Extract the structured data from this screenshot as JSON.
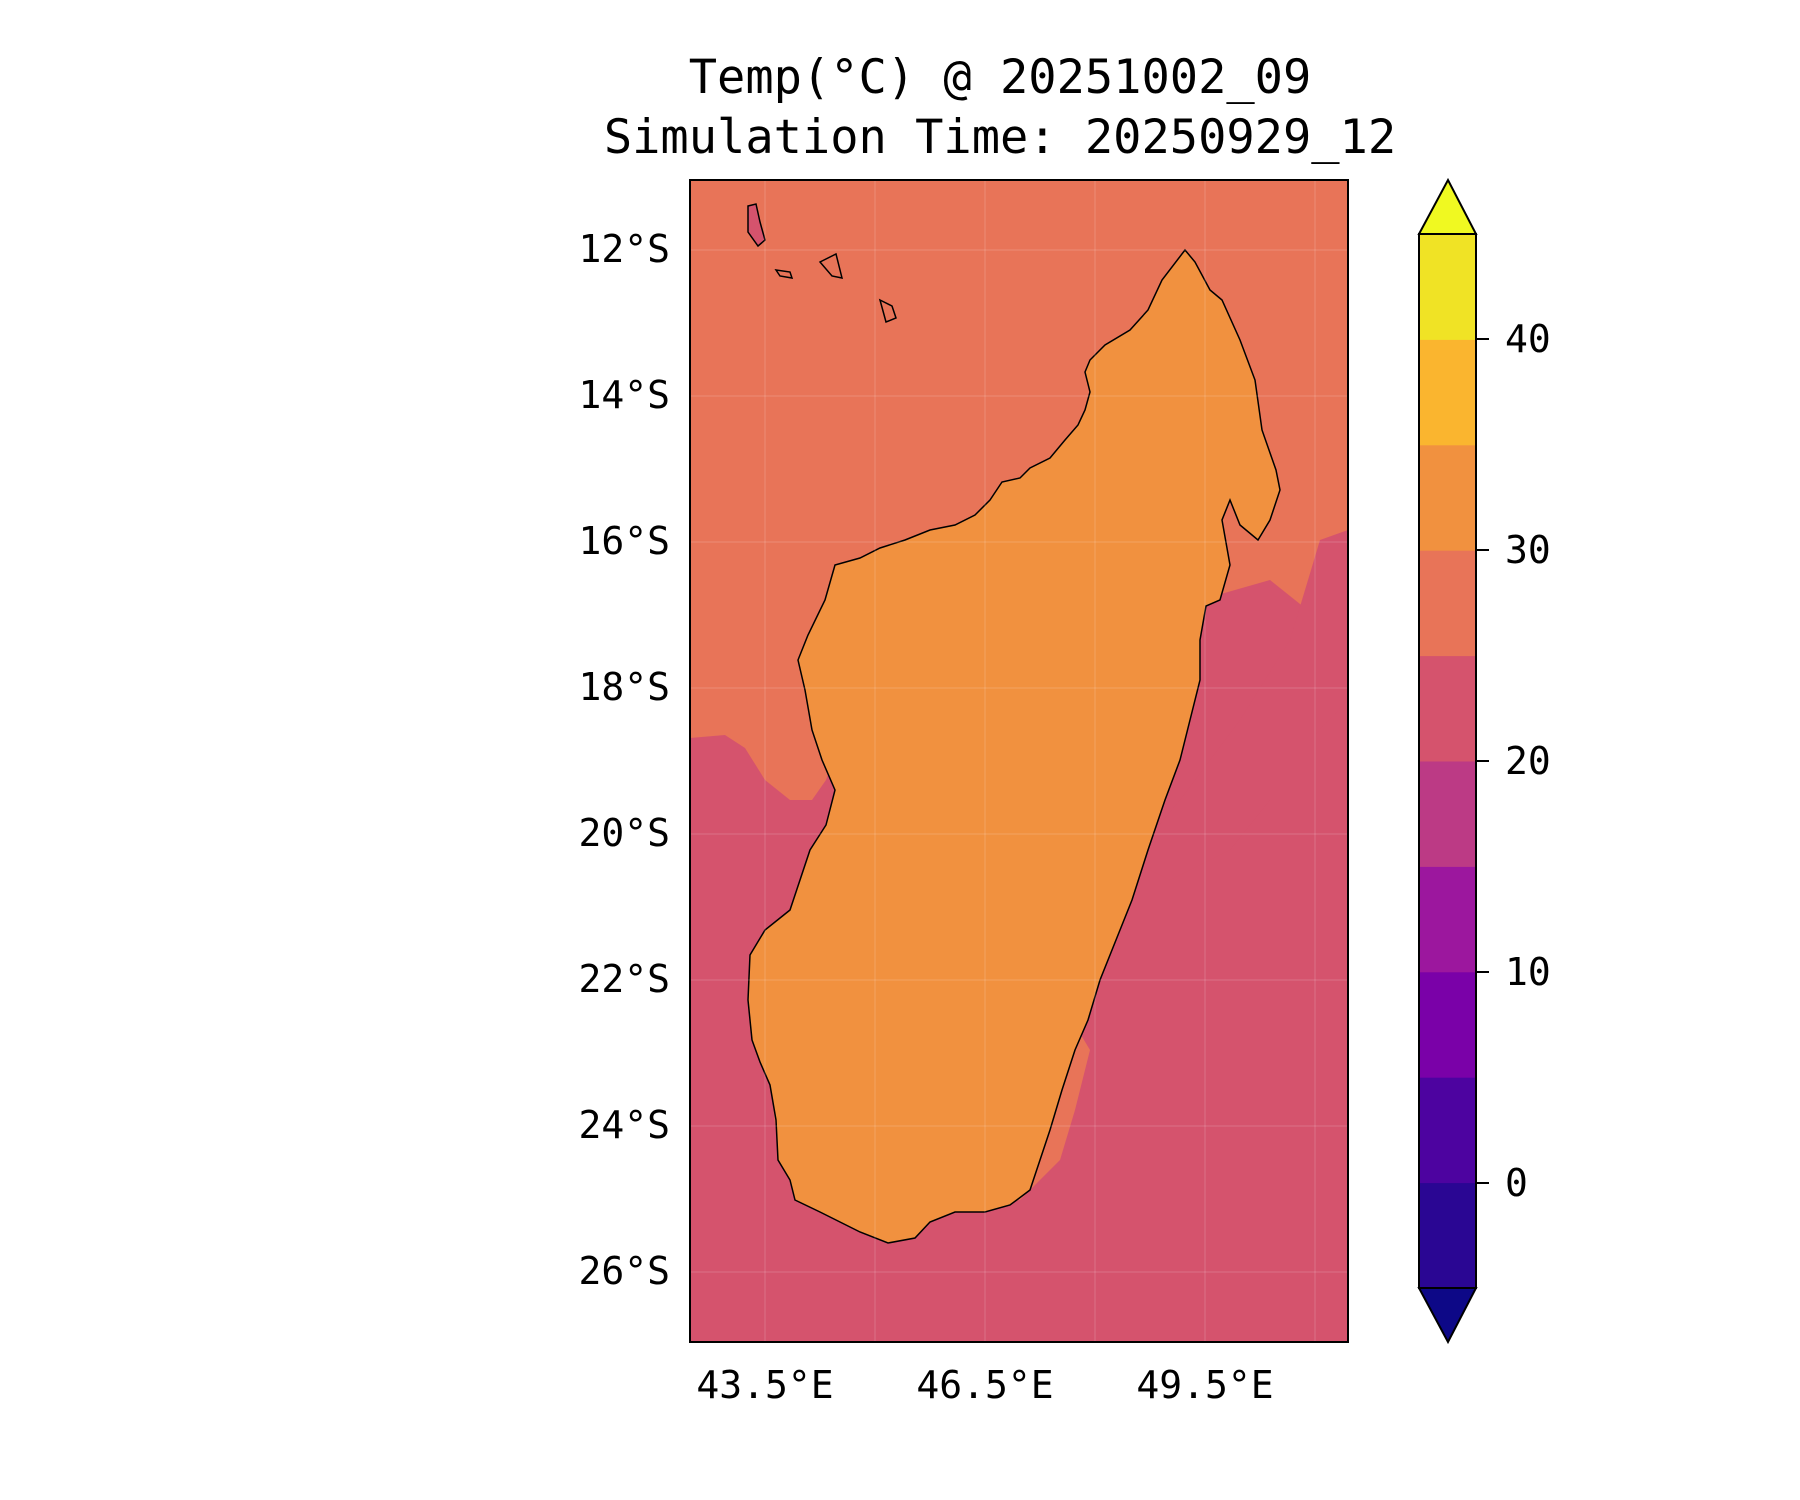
{
  "title": {
    "line1": "Temp(°C) @ 20251002_09",
    "line2": "Simulation Time: 20250929_12"
  },
  "map": {
    "region": "Madagascar",
    "lat_ticks": [
      "12°S",
      "14°S",
      "16°S",
      "18°S",
      "20°S",
      "22°S",
      "24°S",
      "26°S"
    ],
    "lon_ticks": [
      "43.5°E",
      "46.5°E",
      "49.5°E"
    ],
    "ocean_north_color": "#e87458",
    "ocean_south_color": "#d5536d",
    "land_warm_color": "#f1913f",
    "land_mid_color": "#e87458",
    "land_cool_color": "#d5536d",
    "land_cold_color": "#bc3a85",
    "coastline_color": "#000000"
  },
  "colorbar": {
    "tick_labels": [
      "40",
      "30",
      "20",
      "10",
      "0"
    ],
    "levels": [
      -5,
      0,
      5,
      10,
      15,
      20,
      25,
      30,
      35,
      40,
      45
    ],
    "colors": [
      "#2a0693",
      "#4d03a0",
      "#7a01a8",
      "#9c179e",
      "#bc3a85",
      "#d5536d",
      "#e87458",
      "#f1913f",
      "#fab52f",
      "#f0e325"
    ],
    "extend_low_color": "#0d0887",
    "extend_high_color": "#f0f921",
    "unit": "°C"
  }
}
